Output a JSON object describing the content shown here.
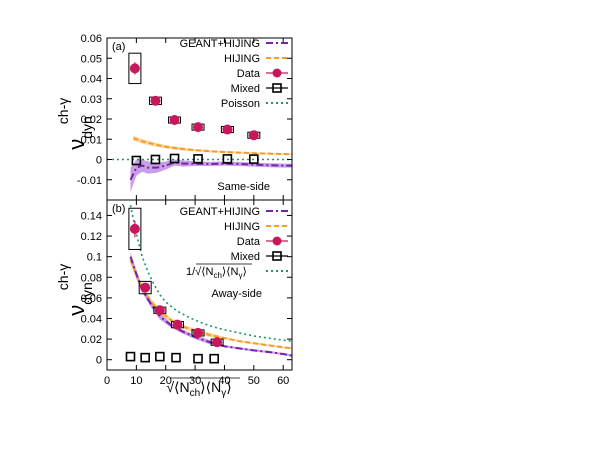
{
  "chart_data": [
    {
      "type": "scatter",
      "panel_tag": "(a)",
      "side_label": "Same-side",
      "ylabel": {
        "main": "ν",
        "sup": "ch-γ",
        "sub": "dyn"
      },
      "xlim": [
        0,
        63
      ],
      "ylim": [
        -0.02,
        0.06
      ],
      "x_ticks": [
        0,
        10,
        20,
        30,
        40,
        50,
        60
      ],
      "y_ticks": [
        -0.01,
        0,
        0.01,
        0.02,
        0.03,
        0.04,
        0.05,
        0.06
      ],
      "y_tick_labels": [
        "-0.01",
        "0",
        "0.01",
        "0.02",
        "0.03",
        "0.04",
        "0.05",
        "0.06"
      ],
      "colors": {
        "geant": "#7a22a8",
        "geant_band": "#b57fe0",
        "hijing": "#f39c22",
        "hijing_band": "#f9c87d",
        "data": "#c8175d",
        "mixed": "#000000",
        "poisson": "#1b9a5a"
      },
      "legend": [
        {
          "label": "GEANT+HIJING",
          "kind": "geant"
        },
        {
          "label": "HIJING",
          "kind": "hijing"
        },
        {
          "label": "Data",
          "kind": "data"
        },
        {
          "label": "Mixed",
          "kind": "mixed"
        },
        {
          "label": "Poisson",
          "kind": "poisson"
        }
      ],
      "series": [
        {
          "name": "Data",
          "kind": "data",
          "x": [
            9.5,
            16.5,
            23.0,
            31.0,
            41.0,
            50.0
          ],
          "y": [
            0.045,
            0.029,
            0.0195,
            0.016,
            0.0148,
            0.012
          ],
          "yerr": [
            0.003,
            0.0015,
            0.001,
            0.0008,
            0.0006,
            0.0005
          ],
          "sys": [
            0.0075,
            0.0018,
            0.0015,
            0.0015,
            0.0015,
            0.0015
          ]
        },
        {
          "name": "Mixed",
          "kind": "mixed",
          "x": [
            10,
            16.5,
            23.0,
            31.0,
            41.0,
            50.0
          ],
          "y": [
            -0.0005,
            0.0,
            0.0005,
            0.0003,
            0.0003,
            0.0002
          ]
        },
        {
          "name": "HIJING",
          "kind": "hijing",
          "x": [
            9,
            12,
            16,
            20,
            25,
            30,
            35,
            40,
            45,
            50,
            55,
            60,
            63
          ],
          "y": [
            0.0105,
            0.009,
            0.0075,
            0.0063,
            0.0053,
            0.0046,
            0.0041,
            0.0037,
            0.0034,
            0.0031,
            0.0029,
            0.0027,
            0.0026
          ],
          "band": [
            0.0012,
            0.0011,
            0.001,
            0.0008,
            0.0007,
            0.0006,
            0.0005,
            0.0005,
            0.0005,
            0.0004,
            0.0004,
            0.0004,
            0.0004
          ]
        },
        {
          "name": "GEANT+HIJING",
          "kind": "geant",
          "x": [
            8,
            10,
            12,
            14,
            17,
            20,
            23,
            26,
            30,
            35,
            40,
            45,
            50,
            55,
            60,
            63
          ],
          "y": [
            -0.01,
            -0.004,
            -0.003,
            -0.004,
            -0.004,
            -0.003,
            -0.0015,
            -0.002,
            -0.002,
            -0.0022,
            -0.002,
            -0.0022,
            -0.0025,
            -0.0028,
            -0.003,
            -0.003
          ],
          "band": [
            0.006,
            0.004,
            0.003,
            0.003,
            0.0025,
            0.002,
            0.0015,
            0.0015,
            0.0012,
            0.001,
            0.001,
            0.001,
            0.001,
            0.001,
            0.001,
            0.001
          ]
        },
        {
          "name": "Poisson",
          "kind": "poisson",
          "x": [
            0,
            63
          ],
          "y": [
            0,
            0
          ]
        }
      ]
    },
    {
      "type": "scatter",
      "panel_tag": "(b)",
      "side_label": "Away-side",
      "ylabel": {
        "main": "ν",
        "sup": "ch-γ",
        "sub": "dyn"
      },
      "xlabel": {
        "prefix": "√⟨N",
        "sub1": "ch",
        "mid": "⟩⟨N",
        "sub2": "γ",
        "suffix": "⟩"
      },
      "xlim": [
        0,
        63
      ],
      "ylim": [
        -0.01,
        0.155
      ],
      "x_ticks": [
        0,
        10,
        20,
        30,
        40,
        50,
        60
      ],
      "x_tick_labels": [
        "0",
        "10",
        "20",
        "30",
        "40",
        "50",
        "60"
      ],
      "y_ticks": [
        0,
        0.02,
        0.04,
        0.06,
        0.08,
        0.1,
        0.12,
        0.14
      ],
      "y_tick_labels": [
        "0",
        "0.02",
        "0.04",
        "0.06",
        "0.08",
        "0.1",
        "0.12",
        "0.14"
      ],
      "colors": {
        "geant": "#7a22a8",
        "geant_band": "#b57fe0",
        "hijing": "#f39c22",
        "hijing_band": "#f9c87d",
        "data": "#c8175d",
        "mixed": "#000000",
        "poisson": "#1b9a5a"
      },
      "legend": [
        {
          "label": "GEANT+HIJING",
          "kind": "geant"
        },
        {
          "label": "HIJING",
          "kind": "hijing"
        },
        {
          "label": "Data",
          "kind": "data"
        },
        {
          "label": "Mixed",
          "kind": "mixed"
        },
        {
          "label_main": "1/√⟨N",
          "label_sub1": "ch",
          "label_mid": "⟩⟨N",
          "label_sub2": "γ",
          "label_end": "⟩",
          "kind": "poisson"
        }
      ],
      "series": [
        {
          "name": "Data",
          "kind": "data",
          "x": [
            9.5,
            13.0,
            18.0,
            24.0,
            31.0,
            37.5
          ],
          "y": [
            0.127,
            0.07,
            0.048,
            0.034,
            0.026,
            0.017
          ],
          "yerr": [
            0.008,
            0.004,
            0.002,
            0.0015,
            0.001,
            0.001
          ],
          "sys": [
            0.02,
            0.006,
            0.003,
            0.003,
            0.003,
            0.003
          ]
        },
        {
          "name": "Mixed",
          "kind": "mixed",
          "x": [
            8,
            13,
            18,
            23.5,
            31.0,
            36.5
          ],
          "y": [
            0.003,
            0.002,
            0.003,
            0.002,
            0.001,
            0.001
          ]
        },
        {
          "name": "HIJING",
          "kind": "hijing",
          "x": [
            8,
            10,
            12,
            15,
            18,
            22,
            26,
            30,
            35,
            40,
            45,
            50,
            55,
            60,
            63
          ],
          "y": [
            0.097,
            0.082,
            0.07,
            0.056,
            0.047,
            0.038,
            0.032,
            0.028,
            0.024,
            0.021,
            0.018,
            0.016,
            0.014,
            0.012,
            0.011
          ],
          "band": [
            0.004,
            0.004,
            0.003,
            0.003,
            0.003,
            0.002,
            0.002,
            0.002,
            0.002,
            0.001,
            0.001,
            0.001,
            0.001,
            0.001,
            0.001
          ]
        },
        {
          "name": "GEANT+HIJING",
          "kind": "geant",
          "x": [
            8,
            10,
            12,
            15,
            18,
            22,
            26,
            30,
            35,
            40,
            45,
            50,
            55,
            60,
            63
          ],
          "y": [
            0.1,
            0.083,
            0.068,
            0.054,
            0.042,
            0.033,
            0.027,
            0.022,
            0.017,
            0.013,
            0.011,
            0.009,
            0.0075,
            0.0055,
            0.004
          ],
          "band": [
            0.004,
            0.004,
            0.003,
            0.003,
            0.003,
            0.002,
            0.002,
            0.002,
            0.002,
            0.001,
            0.001,
            0.001,
            0.001,
            0.001,
            0.001
          ]
        },
        {
          "name": "1/√⟨Nch⟩⟨Nγ⟩",
          "kind": "poisson",
          "x": [
            8,
            9,
            10,
            12,
            14,
            16,
            18,
            20,
            24,
            28,
            32,
            36,
            40,
            45,
            50,
            55,
            60,
            63
          ],
          "y": [
            0.15,
            0.136,
            0.122,
            0.1,
            0.085,
            0.073,
            0.063,
            0.056,
            0.047,
            0.041,
            0.036,
            0.032,
            0.029,
            0.026,
            0.023,
            0.021,
            0.019,
            0.018
          ]
        }
      ]
    }
  ]
}
